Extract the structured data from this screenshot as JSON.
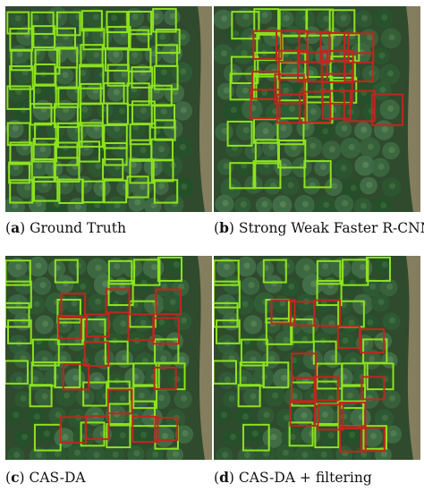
{
  "panels": [
    {
      "letter": "a",
      "caption": "Ground Truth"
    },
    {
      "letter": "b",
      "caption": "Strong Weak Faster R-CNN"
    },
    {
      "letter": "c",
      "caption": "CAS-DA"
    },
    {
      "letter": "d",
      "caption": "CAS-DA + filtering"
    }
  ],
  "colors": {
    "ground_truth_box": "#8de31c",
    "false_detection_box": "#c0261f",
    "vegetation": "#2f4a2c",
    "dirt_path": "#9a8a6c"
  }
}
